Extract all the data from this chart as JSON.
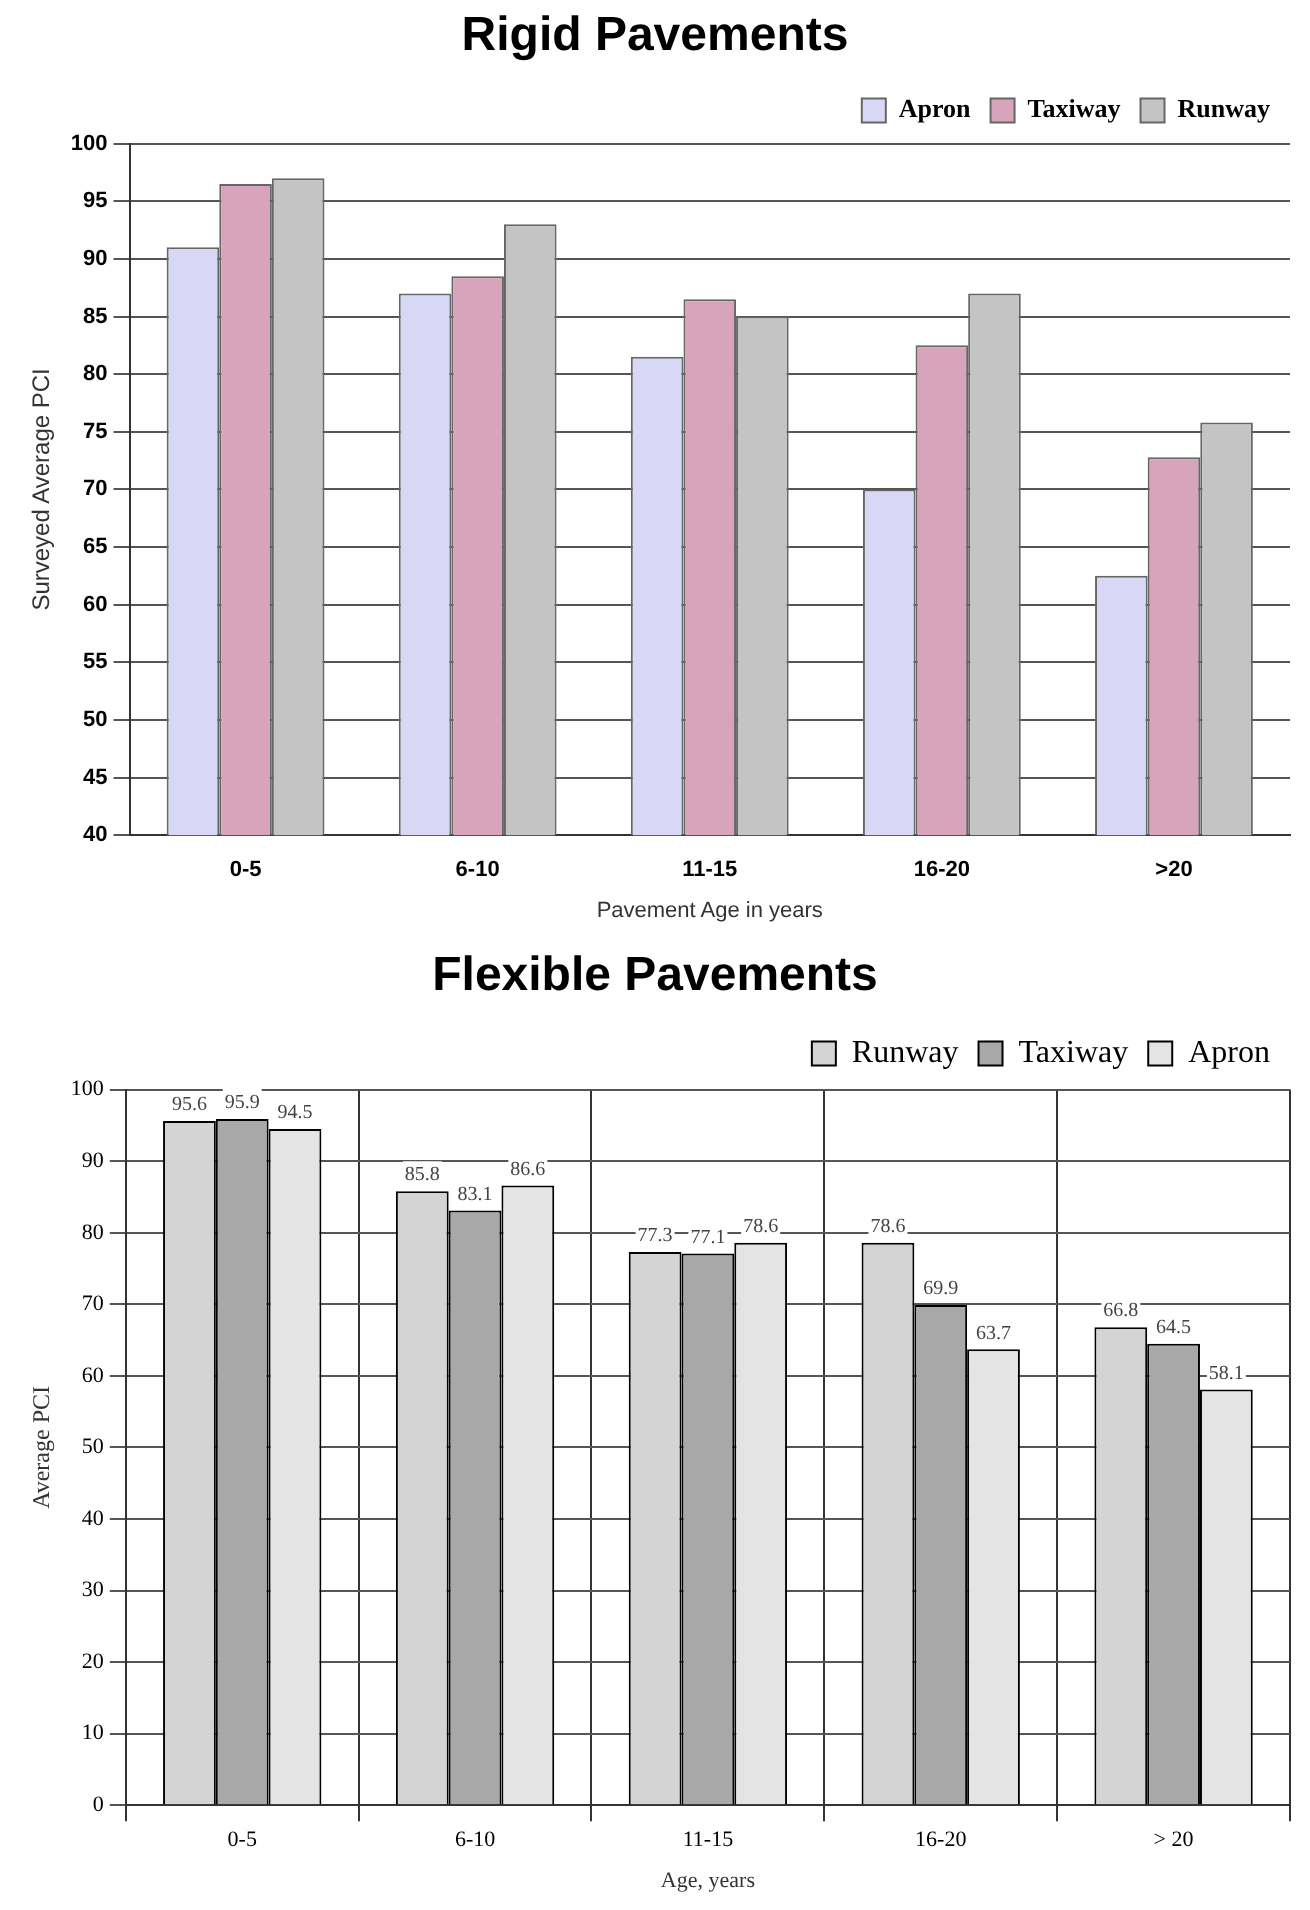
{
  "chart_data": [
    {
      "type": "bar",
      "title": "Rigid Pavements",
      "xlabel": "Pavement Age in years",
      "ylabel": "Surveyed Average PCI",
      "categories": [
        "0-5",
        "6-10",
        "11-15",
        "16-20",
        ">20"
      ],
      "series": [
        {
          "name": "Apron",
          "color": "#d8d8f6",
          "values": [
            91,
            87,
            81.5,
            70,
            62.5
          ]
        },
        {
          "name": "Taxiway",
          "color": "#d8a4bc",
          "values": [
            96.5,
            88.5,
            86.5,
            82.5,
            72.8
          ]
        },
        {
          "name": "Runway",
          "color": "#c4c4c4",
          "values": [
            97,
            93,
            85,
            87,
            75.8
          ]
        }
      ],
      "ylim": [
        40,
        100
      ],
      "yticks": [
        40,
        45,
        50,
        55,
        60,
        65,
        70,
        75,
        80,
        85,
        90,
        95,
        100
      ],
      "grid": "y",
      "legend": "top right"
    },
    {
      "type": "bar",
      "title": "Flexible Pavements",
      "xlabel": "Age, years",
      "ylabel": "Average PCI",
      "categories": [
        "0-5",
        "6-10",
        "11-15",
        "16-20",
        "> 20"
      ],
      "series": [
        {
          "name": "Runway",
          "color": "#d4d4d4",
          "values": [
            95.6,
            85.8,
            77.3,
            78.6,
            66.8
          ]
        },
        {
          "name": "Taxiway",
          "color": "#a8a8a8",
          "values": [
            95.9,
            83.1,
            77.1,
            69.9,
            64.5
          ]
        },
        {
          "name": "Apron",
          "color": "#e4e4e4",
          "values": [
            94.5,
            86.6,
            78.6,
            63.7,
            58.1
          ]
        }
      ],
      "ylim": [
        0,
        100
      ],
      "yticks": [
        0,
        10,
        20,
        30,
        40,
        50,
        60,
        70,
        80,
        90,
        100
      ],
      "grid": true,
      "legend": "top right",
      "data_labels": true
    }
  ]
}
